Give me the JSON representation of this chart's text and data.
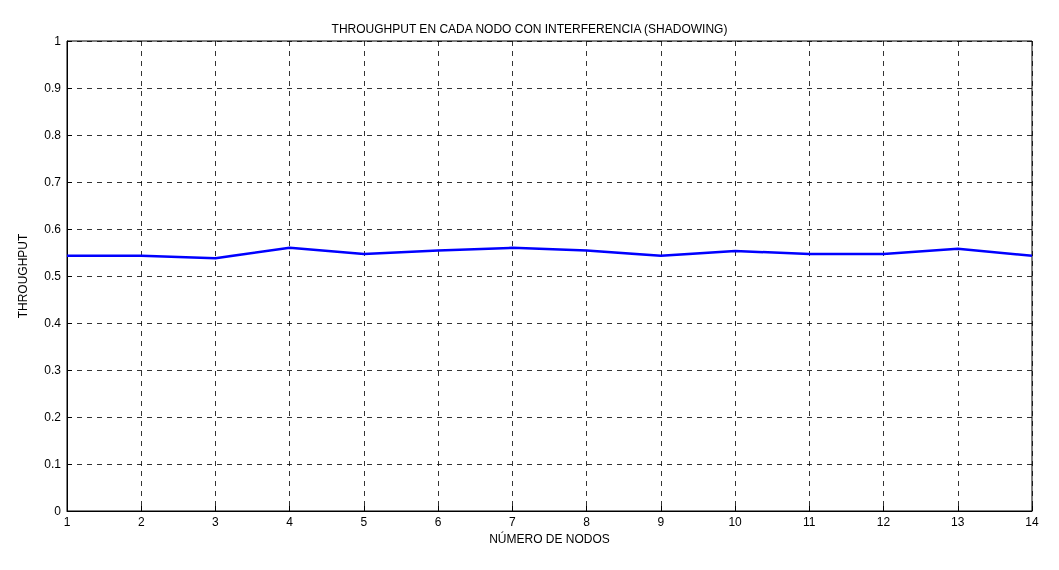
{
  "chart_data": {
    "type": "line",
    "title": "THROUGHPUT EN CADA NODO CON INTERFERENCIA (SHADOWING)",
    "xlabel": "NÚMERO DE NODOS",
    "ylabel": "THROUGHPUT",
    "x": [
      1,
      2,
      3,
      4,
      5,
      6,
      7,
      8,
      9,
      10,
      11,
      12,
      13,
      14
    ],
    "series": [
      {
        "color": "#0000ff",
        "values": [
          0.543,
          0.543,
          0.538,
          0.56,
          0.547,
          0.554,
          0.56,
          0.554,
          0.543,
          0.553,
          0.547,
          0.547,
          0.558,
          0.543
        ]
      }
    ],
    "xlim": [
      1,
      14
    ],
    "xticks": [
      1,
      2,
      3,
      4,
      5,
      6,
      7,
      8,
      9,
      10,
      11,
      12,
      13,
      14
    ],
    "ylim": [
      0,
      1
    ],
    "yticks": [
      0,
      0.1,
      0.2,
      0.3,
      0.4,
      0.5,
      0.6,
      0.7,
      0.8,
      0.9,
      1
    ],
    "grid": true,
    "marker": "none",
    "line_style": "solid"
  }
}
